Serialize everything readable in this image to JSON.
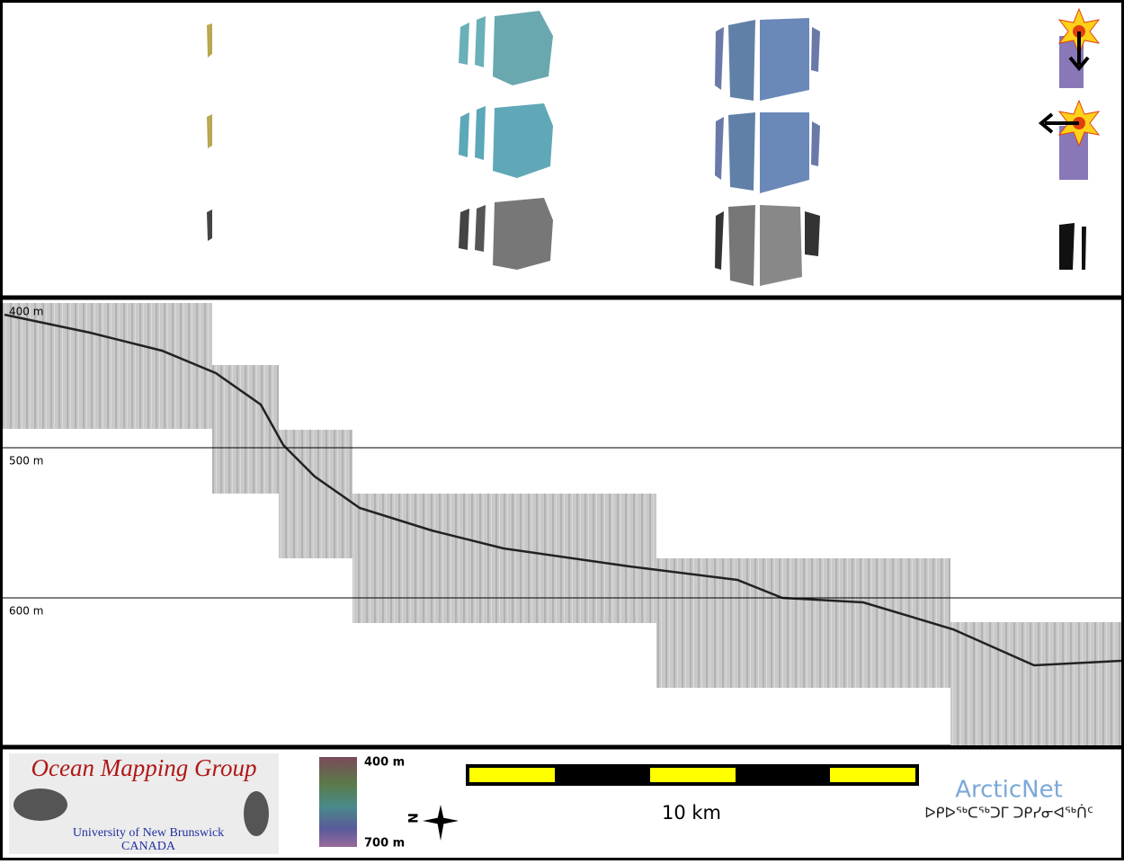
{
  "profile": {
    "depth_labels": [
      "400 m",
      "500 m",
      "600 m"
    ]
  },
  "legend": {
    "logo_title": "Ocean Mapping Group",
    "logo_university": "University of New Brunswick",
    "logo_country": "CANADA",
    "colorbar_top": "400 m",
    "colorbar_bottom": "700 m",
    "compass": "N",
    "scale": "10 km",
    "partner": "ArcticNet",
    "partner_syllabics": "ᐅᑭᐅᖅᑕᖅᑐᒥ ᑐᑭᓯᓂᐊᖅᑏᑦ"
  }
}
